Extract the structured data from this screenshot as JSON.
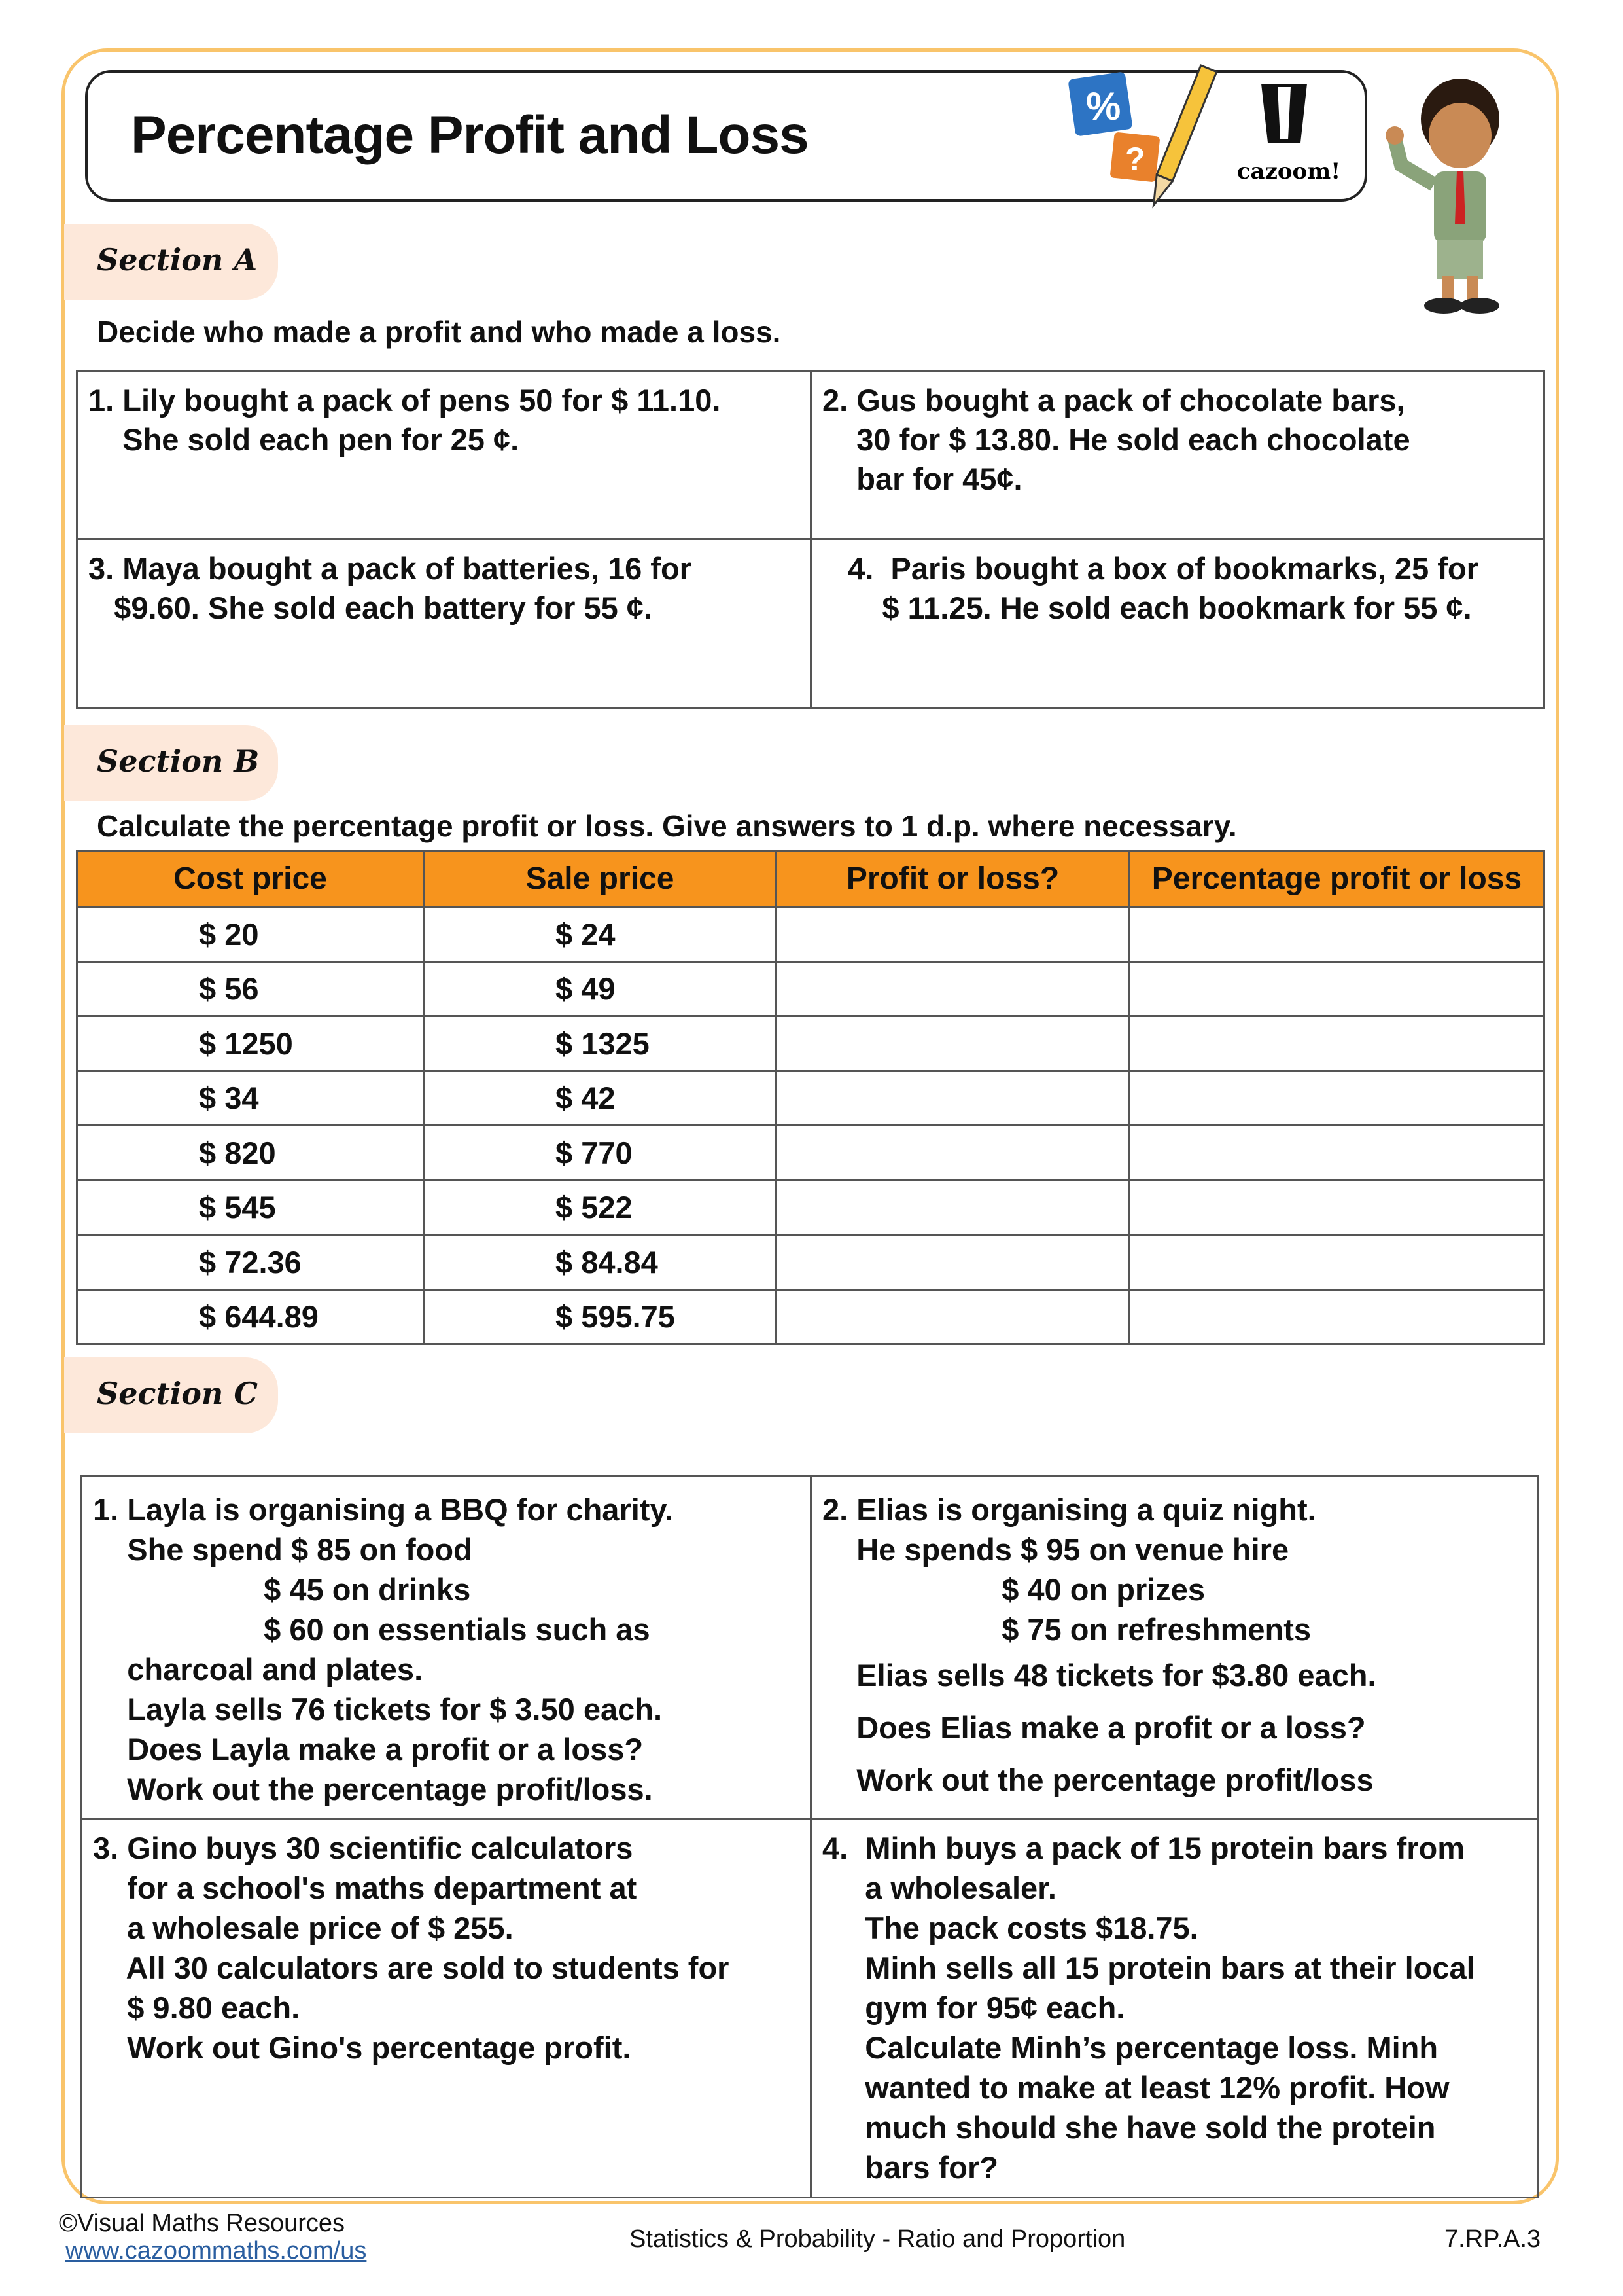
{
  "title": "Percentage Profit and Loss",
  "logo": {
    "text": "cazoom!",
    "icons": [
      "percent-card",
      "question-card",
      "pencil"
    ]
  },
  "sectionA": {
    "label": "Section A",
    "instruction": "Decide who made a profit and who made a loss.",
    "questions": [
      {
        "lines": [
          "1. Lily bought a pack of pens 50 for $ 11.10.",
          "    She sold each pen for 25 ¢."
        ]
      },
      {
        "lines": [
          "2. Gus bought a pack of chocolate bars,",
          "    30 for $ 13.80. He sold each chocolate",
          "    bar for 45¢."
        ]
      },
      {
        "lines": [
          "3. Maya bought a pack of batteries, 16 for",
          "   $9.60. She sold each battery for 55 ¢."
        ]
      },
      {
        "lines": [
          "   4.  Paris bought a box of bookmarks, 25 for",
          "       $ 11.25. He sold each bookmark for 55 ¢."
        ]
      }
    ]
  },
  "sectionB": {
    "label": "Section B",
    "instruction": "Calculate the percentage profit or loss. Give answers to 1 d.p. where necessary.",
    "headers": [
      "Cost price",
      "Sale price",
      "Profit or loss?",
      "Percentage profit or loss"
    ],
    "rows": [
      [
        "$ 20",
        "$ 24"
      ],
      [
        "$ 56",
        "$ 49"
      ],
      [
        "$ 1250",
        "$ 1325"
      ],
      [
        "$ 34",
        "$ 42"
      ],
      [
        "$ 820",
        "$ 770"
      ],
      [
        "$ 545",
        "$ 522"
      ],
      [
        "$ 72.36",
        "$ 84.84"
      ],
      [
        "$ 644.89",
        "$ 595.75"
      ]
    ]
  },
  "sectionC": {
    "label": "Section C",
    "questions": [
      {
        "lines": [
          "1. Layla is organising a BBQ for charity.",
          "    She spend $ 85 on food",
          "                    $ 45 on drinks",
          "                    $ 60 on essentials such as",
          "    charcoal and plates.",
          "    Layla sells 76 tickets for $ 3.50 each.",
          "    Does Layla make a profit or a loss?",
          "    Work out the percentage profit/loss."
        ]
      },
      {
        "lines": [
          "2. Elias is organising a quiz night.",
          "    He spends $ 95 on venue hire",
          "                     $ 40 on prizes",
          "                     $ 75 on refreshments",
          "    Elias sells 48 tickets for $3.80 each.",
          "    Does Elias make a profit or a loss?",
          "    Work out the percentage profit/loss"
        ]
      },
      {
        "lines": [
          "3. Gino buys 30 scientific calculators",
          "    for a school's maths department at",
          "    a wholesale price of $ 255.",
          "    All 30 calculators are sold to students for",
          "    $ 9.80 each.",
          "    Work out Gino's percentage profit."
        ]
      },
      {
        "lines": [
          "4.  Minh buys a pack of 15 protein bars from",
          "     a wholesaler.",
          "     The pack costs $18.75.",
          "     Minh sells all 15 protein bars at their local",
          "     gym for 95¢ each.",
          "     Calculate Minh’s percentage loss. Minh",
          "     wanted to make at least 12% profit. How",
          "     much should she have sold the protein",
          "     bars for?"
        ]
      }
    ]
  },
  "footer": {
    "copyright": "©Visual Maths Resources",
    "link": "www.cazoommaths.com/us",
    "topic": "Statistics & Probability - Ratio and Proportion",
    "code": "7.RP.A.3"
  },
  "colors": {
    "border": "#f9c46b",
    "header": "#f7941d",
    "pill": "#fde8da",
    "link": "#2a5ea0"
  }
}
